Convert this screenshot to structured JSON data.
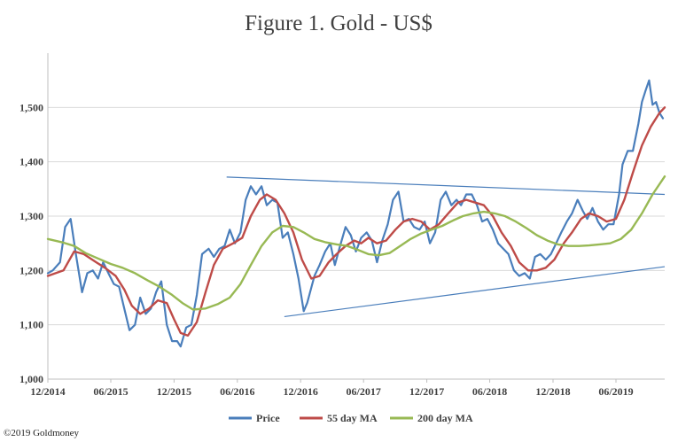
{
  "colors": {
    "price": "#4a7ebb",
    "ma55": "#be4b48",
    "ma200": "#98b954",
    "trendline": "#4a7ebb",
    "grid": "#d9d9d9",
    "axis": "#bfbfbf"
  },
  "copyright": "©2019 Goldmoney",
  "chart_data": {
    "type": "line",
    "title": "Figure 1. Gold - US$",
    "xlabel": "",
    "ylabel": "",
    "x_range": [
      "2014-12-01",
      "2019-10-20"
    ],
    "ylim": [
      1000,
      1600
    ],
    "grid": true,
    "legend_position": "bottom",
    "yticks": [
      1000,
      1100,
      1200,
      1300,
      1400,
      1500
    ],
    "ytick_labels": [
      "1,000",
      "1,100",
      "1,200",
      "1,300",
      "1,400",
      "1,500"
    ],
    "xticks": [
      {
        "date": "2014-12-01",
        "label": "12/2014"
      },
      {
        "date": "2015-06-01",
        "label": "06/2015"
      },
      {
        "date": "2015-12-01",
        "label": "12/2015"
      },
      {
        "date": "2016-06-01",
        "label": "06/2016"
      },
      {
        "date": "2016-12-01",
        "label": "12/2016"
      },
      {
        "date": "2017-06-01",
        "label": "06/2017"
      },
      {
        "date": "2017-12-01",
        "label": "12/2017"
      },
      {
        "date": "2018-06-01",
        "label": "06/2018"
      },
      {
        "date": "2018-12-01",
        "label": "12/2018"
      },
      {
        "date": "2019-06-01",
        "label": "06/2019"
      }
    ],
    "series": [
      {
        "name": "Price",
        "x": [
          "2014-12-01",
          "2014-12-15",
          "2015-01-05",
          "2015-01-20",
          "2015-02-05",
          "2015-02-20",
          "2015-03-10",
          "2015-03-25",
          "2015-04-10",
          "2015-04-25",
          "2015-05-10",
          "2015-05-25",
          "2015-06-10",
          "2015-06-25",
          "2015-07-10",
          "2015-07-25",
          "2015-08-10",
          "2015-08-25",
          "2015-09-10",
          "2015-09-25",
          "2015-10-10",
          "2015-10-25",
          "2015-11-10",
          "2015-11-25",
          "2015-12-10",
          "2015-12-20",
          "2016-01-05",
          "2016-01-20",
          "2016-02-05",
          "2016-02-20",
          "2016-03-10",
          "2016-03-25",
          "2016-04-10",
          "2016-04-25",
          "2016-05-10",
          "2016-05-25",
          "2016-06-10",
          "2016-06-25",
          "2016-07-10",
          "2016-07-25",
          "2016-08-10",
          "2016-08-25",
          "2016-09-10",
          "2016-09-25",
          "2016-10-10",
          "2016-10-25",
          "2016-11-10",
          "2016-11-25",
          "2016-12-10",
          "2016-12-20",
          "2017-01-10",
          "2017-01-25",
          "2017-02-10",
          "2017-02-25",
          "2017-03-10",
          "2017-03-25",
          "2017-04-10",
          "2017-04-25",
          "2017-05-10",
          "2017-05-25",
          "2017-06-10",
          "2017-06-25",
          "2017-07-10",
          "2017-07-25",
          "2017-08-10",
          "2017-08-25",
          "2017-09-10",
          "2017-09-25",
          "2017-10-10",
          "2017-10-25",
          "2017-11-10",
          "2017-11-25",
          "2017-12-10",
          "2017-12-25",
          "2018-01-10",
          "2018-01-25",
          "2018-02-10",
          "2018-02-25",
          "2018-03-10",
          "2018-03-25",
          "2018-04-10",
          "2018-04-25",
          "2018-05-10",
          "2018-05-25",
          "2018-06-10",
          "2018-06-25",
          "2018-07-10",
          "2018-07-25",
          "2018-08-10",
          "2018-08-25",
          "2018-09-10",
          "2018-09-25",
          "2018-10-10",
          "2018-10-25",
          "2018-11-10",
          "2018-11-25",
          "2018-12-10",
          "2018-12-25",
          "2019-01-10",
          "2019-01-25",
          "2019-02-10",
          "2019-02-25",
          "2019-03-10",
          "2019-03-25",
          "2019-04-10",
          "2019-04-25",
          "2019-05-10",
          "2019-05-25",
          "2019-06-10",
          "2019-06-20",
          "2019-07-05",
          "2019-07-20",
          "2019-08-05",
          "2019-08-15",
          "2019-08-25",
          "2019-09-05",
          "2019-09-15",
          "2019-09-25",
          "2019-10-05",
          "2019-10-15"
        ],
        "values": [
          1195,
          1200,
          1215,
          1280,
          1295,
          1230,
          1160,
          1195,
          1200,
          1185,
          1215,
          1195,
          1175,
          1170,
          1130,
          1090,
          1100,
          1150,
          1120,
          1130,
          1160,
          1180,
          1100,
          1070,
          1070,
          1060,
          1095,
          1100,
          1155,
          1230,
          1240,
          1225,
          1240,
          1245,
          1275,
          1250,
          1270,
          1330,
          1355,
          1340,
          1355,
          1320,
          1330,
          1325,
          1260,
          1270,
          1230,
          1185,
          1125,
          1140,
          1190,
          1210,
          1235,
          1250,
          1210,
          1245,
          1280,
          1265,
          1235,
          1260,
          1270,
          1255,
          1215,
          1255,
          1285,
          1330,
          1345,
          1290,
          1295,
          1280,
          1275,
          1290,
          1250,
          1270,
          1330,
          1345,
          1320,
          1330,
          1320,
          1340,
          1340,
          1320,
          1290,
          1295,
          1275,
          1250,
          1240,
          1230,
          1200,
          1190,
          1195,
          1185,
          1225,
          1230,
          1220,
          1230,
          1250,
          1270,
          1290,
          1305,
          1330,
          1310,
          1295,
          1315,
          1290,
          1275,
          1285,
          1285,
          1340,
          1395,
          1420,
          1420,
          1470,
          1510,
          1530,
          1550,
          1505,
          1510,
          1490,
          1480
        ]
      },
      {
        "name": "55 day MA",
        "x": [
          "2014-12-01",
          "2015-01-15",
          "2015-02-15",
          "2015-03-15",
          "2015-04-20",
          "2015-05-15",
          "2015-06-15",
          "2015-07-10",
          "2015-08-01",
          "2015-08-25",
          "2015-09-20",
          "2015-10-15",
          "2015-11-10",
          "2015-12-01",
          "2015-12-20",
          "2016-01-10",
          "2016-02-05",
          "2016-03-01",
          "2016-03-25",
          "2016-04-20",
          "2016-05-20",
          "2016-06-15",
          "2016-07-10",
          "2016-08-05",
          "2016-08-25",
          "2016-09-20",
          "2016-10-15",
          "2016-11-10",
          "2016-12-05",
          "2017-01-01",
          "2017-01-25",
          "2017-02-20",
          "2017-03-15",
          "2017-04-10",
          "2017-05-05",
          "2017-05-25",
          "2017-06-15",
          "2017-07-10",
          "2017-08-05",
          "2017-09-01",
          "2017-09-25",
          "2017-10-20",
          "2017-11-15",
          "2017-12-10",
          "2018-01-05",
          "2018-02-01",
          "2018-03-01",
          "2018-03-25",
          "2018-04-20",
          "2018-05-15",
          "2018-06-10",
          "2018-07-05",
          "2018-08-01",
          "2018-08-25",
          "2018-09-20",
          "2018-10-15",
          "2018-11-10",
          "2018-12-05",
          "2019-01-01",
          "2019-01-25",
          "2019-02-20",
          "2019-03-15",
          "2019-04-10",
          "2019-05-05",
          "2019-06-01",
          "2019-06-25",
          "2019-07-20",
          "2019-08-15",
          "2019-09-10",
          "2019-10-05",
          "2019-10-20"
        ],
        "values": [
          1190,
          1200,
          1235,
          1230,
          1215,
          1205,
          1190,
          1165,
          1135,
          1120,
          1130,
          1145,
          1140,
          1110,
          1085,
          1080,
          1105,
          1160,
          1210,
          1240,
          1250,
          1260,
          1300,
          1330,
          1340,
          1330,
          1305,
          1270,
          1220,
          1185,
          1190,
          1215,
          1230,
          1245,
          1255,
          1250,
          1260,
          1250,
          1255,
          1275,
          1290,
          1295,
          1290,
          1275,
          1285,
          1305,
          1325,
          1330,
          1325,
          1320,
          1300,
          1270,
          1245,
          1215,
          1200,
          1200,
          1205,
          1220,
          1250,
          1270,
          1295,
          1305,
          1300,
          1290,
          1295,
          1330,
          1380,
          1430,
          1465,
          1490,
          1500
        ]
      },
      {
        "name": "200 day MA",
        "x": [
          "2014-12-01",
          "2015-01-10",
          "2015-02-15",
          "2015-03-20",
          "2015-04-25",
          "2015-06-01",
          "2015-07-05",
          "2015-08-10",
          "2015-09-15",
          "2015-10-20",
          "2015-11-25",
          "2015-12-25",
          "2016-01-25",
          "2016-03-01",
          "2016-04-05",
          "2016-05-10",
          "2016-06-10",
          "2016-07-10",
          "2016-08-10",
          "2016-09-10",
          "2016-10-10",
          "2016-11-10",
          "2016-12-10",
          "2017-01-10",
          "2017-02-10",
          "2017-03-15",
          "2017-04-15",
          "2017-05-15",
          "2017-06-15",
          "2017-07-15",
          "2017-08-15",
          "2017-09-15",
          "2017-10-15",
          "2017-11-15",
          "2017-12-15",
          "2018-01-15",
          "2018-02-15",
          "2018-03-15",
          "2018-04-15",
          "2018-05-15",
          "2018-06-15",
          "2018-07-15",
          "2018-08-15",
          "2018-09-15",
          "2018-10-15",
          "2018-11-15",
          "2018-12-15",
          "2019-01-15",
          "2019-02-15",
          "2019-03-15",
          "2019-04-15",
          "2019-05-15",
          "2019-06-15",
          "2019-07-15",
          "2019-08-15",
          "2019-09-15",
          "2019-10-20"
        ],
        "values": [
          1258,
          1252,
          1245,
          1232,
          1222,
          1212,
          1205,
          1195,
          1182,
          1170,
          1155,
          1140,
          1128,
          1130,
          1138,
          1150,
          1175,
          1210,
          1245,
          1270,
          1282,
          1280,
          1270,
          1258,
          1252,
          1248,
          1245,
          1238,
          1230,
          1228,
          1232,
          1245,
          1258,
          1268,
          1275,
          1282,
          1292,
          1300,
          1305,
          1308,
          1305,
          1300,
          1290,
          1278,
          1265,
          1255,
          1248,
          1245,
          1245,
          1246,
          1248,
          1250,
          1258,
          1275,
          1305,
          1340,
          1373
        ]
      }
    ],
    "trendlines": [
      {
        "x": [
          "2016-05-01",
          "2019-10-20"
        ],
        "values": [
          1372,
          1340
        ]
      },
      {
        "x": [
          "2016-10-15",
          "2019-10-20"
        ],
        "values": [
          1115,
          1207
        ]
      }
    ]
  }
}
